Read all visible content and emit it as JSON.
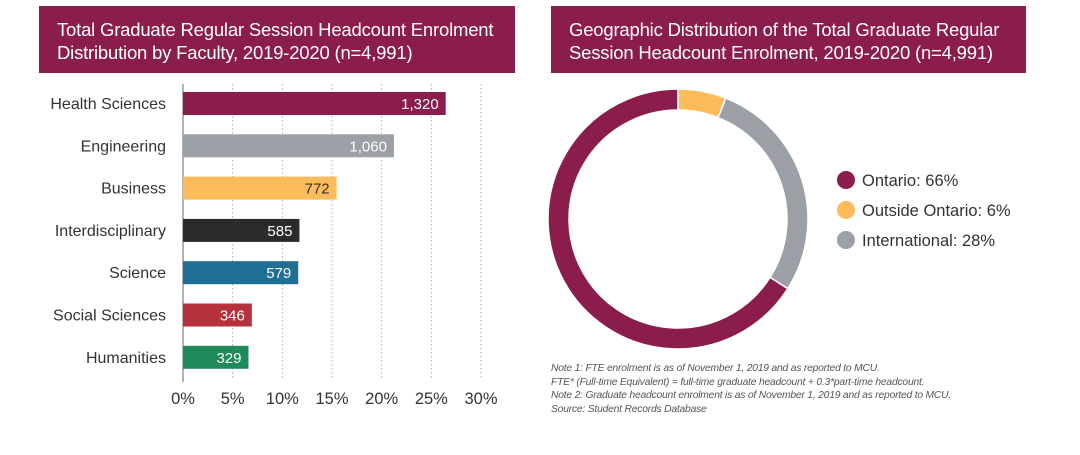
{
  "left_header": {
    "line1": "Total Graduate Regular Session Headcount Enrolment",
    "line2": "Distribution by Faculty, 2019-2020 (n=4,991)"
  },
  "right_header": {
    "line1": "Geographic Distribution of the Total Graduate Regular",
    "line2": "Session Headcount Enrolment, 2019-2020 (n=4,991)"
  },
  "chart_data": [
    {
      "type": "bar",
      "orientation": "horizontal",
      "title": "Total Graduate Regular Session Headcount Enrolment Distribution by Faculty, 2019-2020 (n=4,991)",
      "categories": [
        "Health Sciences",
        "Engineering",
        "Business",
        "Interdisciplinary",
        "Science",
        "Social Sciences",
        "Humanities"
      ],
      "values": [
        1320,
        1060,
        772,
        585,
        579,
        346,
        329
      ],
      "value_labels": [
        "1,320",
        "1,060",
        "772",
        "585",
        "579",
        "346",
        "329"
      ],
      "total": 4991,
      "colors": [
        "#8a1d4b",
        "#9aa0a6",
        "#fdbb5a",
        "#2b2b2b",
        "#1f6e94",
        "#b5323c",
        "#1f8a5b"
      ],
      "label_colors": [
        "#ffffff",
        "#ffffff",
        "#333333",
        "#ffffff",
        "#ffffff",
        "#ffffff",
        "#ffffff"
      ],
      "xlim": [
        0,
        30
      ],
      "xticks": [
        0,
        5,
        10,
        15,
        20,
        25,
        30
      ],
      "xtick_labels": [
        "0%",
        "5%",
        "10%",
        "15%",
        "20%",
        "25%",
        "30%"
      ],
      "grid": "vertical dotted"
    },
    {
      "type": "pie",
      "variant": "donut",
      "title": "Geographic Distribution of the Total Graduate Regular Session Headcount Enrolment, 2019-2020 (n=4,991)",
      "labels": [
        "Ontario",
        "Outside Ontario",
        "International"
      ],
      "values": [
        66,
        6,
        28
      ],
      "legend_labels": [
        "Ontario: 66%",
        "Outside Ontario: 6%",
        "International: 28%"
      ],
      "colors": [
        "#8a1d4b",
        "#fdbb5a",
        "#9aa0a6"
      ],
      "legend_position": "right"
    }
  ],
  "notes": [
    "Note 1: FTE enrolment is as of November 1, 2019 and as reported to MCU.",
    "FTE* (Full-time Equivalent) = full-time graduate headcount + 0.3*part-time headcount.",
    "Note 2: Graduate headcount enrolment is as of November 1, 2019 and as reported to MCU.",
    "Source: Student Records Database"
  ]
}
